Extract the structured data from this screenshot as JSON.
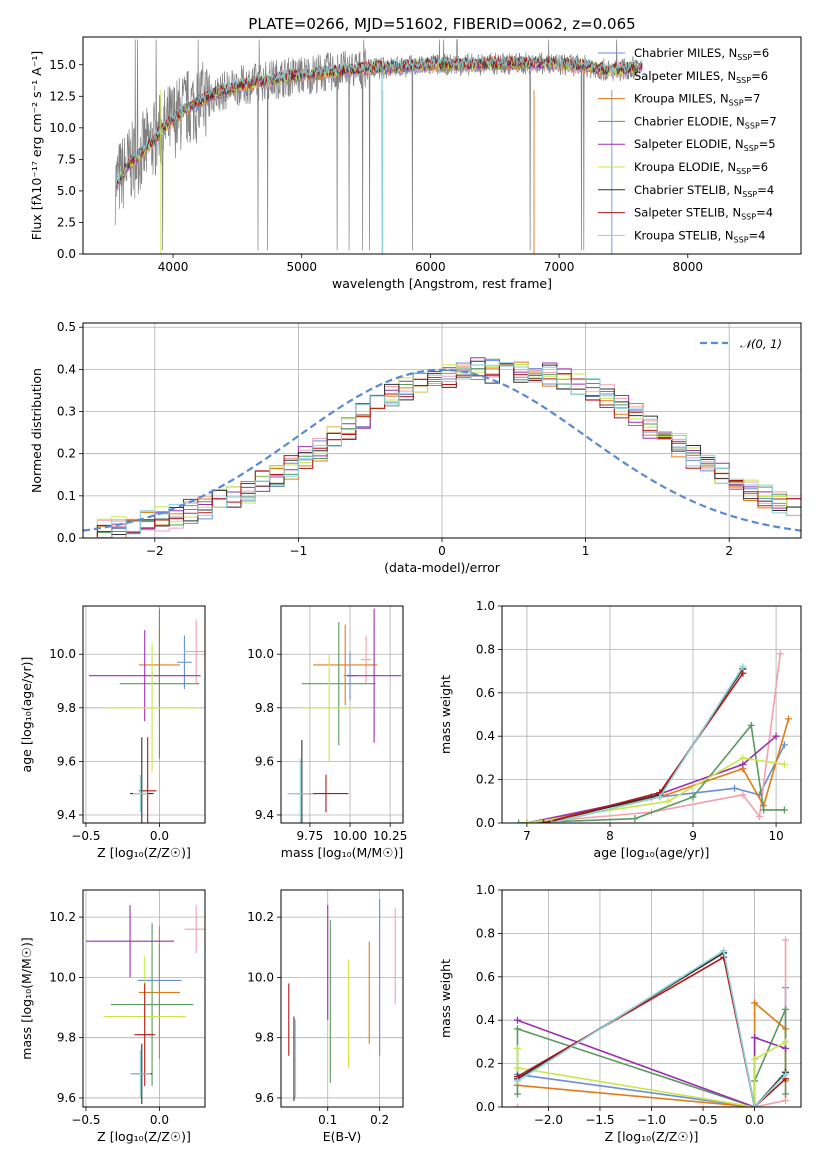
{
  "palette": [
    "#6a8fd6",
    "#f4a0b0",
    "#e07c18",
    "#5a9a60",
    "#9b30b0",
    "#c8e84a",
    "#303030",
    "#b01818",
    "#8cd0d8"
  ],
  "figure": {
    "title": "PLATE=0266, MJD=51602, FIBERID=0062, z=0.065"
  },
  "chart_data": [
    {
      "id": "spectrum",
      "type": "line",
      "title": "PLATE=0266, MJD=51602, FIBERID=0062, z=0.065",
      "xlabel": "wavelength [Angstrom, rest frame]",
      "ylabel": "Flux [fλ10⁻¹⁷ erg cm⁻² s⁻¹ A⁻¹]",
      "xlim": [
        3300,
        8880
      ],
      "ylim": [
        0,
        17.2
      ],
      "xticks": [
        "4000",
        "5000",
        "6000",
        "7000",
        "8000"
      ],
      "yticks": [
        "0.0",
        "2.5",
        "5.0",
        "7.5",
        "10.0",
        "12.5",
        "15.0"
      ],
      "grid": false,
      "legend_position": "right",
      "continuum": {
        "x": [
          3550,
          3650,
          3800,
          3950,
          4100,
          4300,
          4500,
          4800,
          5100,
          5400,
          5700,
          6000,
          6300,
          6600,
          6900,
          7200,
          7400,
          7600
        ],
        "y": [
          5.5,
          7.0,
          8.5,
          10.2,
          11.5,
          12.6,
          13.3,
          13.9,
          14.3,
          14.6,
          14.8,
          15.0,
          15.0,
          15.1,
          15.1,
          14.9,
          14.5,
          14.8
        ]
      },
      "series": [
        {
          "name": "Chabrier MILES, N_SSP=6"
        },
        {
          "name": "Salpeter MILES, N_SSP=6"
        },
        {
          "name": "Kroupa MILES, N_SSP=7"
        },
        {
          "name": "Chabrier ELODIE, N_SSP=7"
        },
        {
          "name": "Salpeter ELODIE, N_SSP=5"
        },
        {
          "name": "Kroupa ELODIE, N_SSP=6"
        },
        {
          "name": "Chabrier STELIB, N_SSP=4"
        },
        {
          "name": "Salpeter STELIB, N_SSP=4"
        },
        {
          "name": "Kroupa STELIB, N_SSP=4"
        }
      ],
      "legend_entries": [
        {
          "base": "Chabrier MILES, N",
          "sub": "SSP",
          "suffix": "=6"
        },
        {
          "base": "Salpeter MILES, N",
          "sub": "SSP",
          "suffix": "=6"
        },
        {
          "base": "Kroupa MILES, N",
          "sub": "SSP",
          "suffix": "=7"
        },
        {
          "base": "Chabrier ELODIE, N",
          "sub": "SSP",
          "suffix": "=7"
        },
        {
          "base": "Salpeter ELODIE, N",
          "sub": "SSP",
          "suffix": "=5"
        },
        {
          "base": "Kroupa ELODIE, N",
          "sub": "SSP",
          "suffix": "=6"
        },
        {
          "base": "Chabrier STELIB, N",
          "sub": "SSP",
          "suffix": "=4"
        },
        {
          "base": "Salpeter STELIB, N",
          "sub": "SSP",
          "suffix": "=4"
        },
        {
          "base": "Kroupa STELIB, N",
          "sub": "SSP",
          "suffix": "=4"
        }
      ]
    },
    {
      "id": "residuals",
      "type": "bar",
      "xlabel": "(data-model)/error",
      "ylabel": "Normed distribution",
      "xlim": [
        -2.5,
        2.5
      ],
      "ylim": [
        0,
        0.51
      ],
      "xticks": [
        "−2",
        "−1",
        "0",
        "1",
        "2"
      ],
      "yticks": [
        "0.0",
        "0.1",
        "0.2",
        "0.3",
        "0.4",
        "0.5"
      ],
      "grid": true,
      "bin_width": 0.1,
      "bin_start": -2.5,
      "curve_name": "𝒩(0, 1)",
      "legend_position": "top-right",
      "envelope": [
        0.02,
        0.022,
        0.027,
        0.032,
        0.038,
        0.045,
        0.052,
        0.062,
        0.072,
        0.085,
        0.098,
        0.112,
        0.13,
        0.148,
        0.168,
        0.19,
        0.212,
        0.235,
        0.262,
        0.29,
        0.312,
        0.335,
        0.355,
        0.37,
        0.378,
        0.387,
        0.394,
        0.398,
        0.397,
        0.394,
        0.398,
        0.394,
        0.387,
        0.378,
        0.37,
        0.355,
        0.335,
        0.312,
        0.29,
        0.262,
        0.242,
        0.218,
        0.19,
        0.168,
        0.148,
        0.13,
        0.112,
        0.098,
        0.085,
        0.072
      ]
    },
    {
      "id": "age-vs-z",
      "type": "scatter",
      "xlabel": "Z [log₁₀(Z/Z☉)]",
      "ylabel": "age  [log₁₀(age/yr)]",
      "xlim": [
        -0.52,
        0.31
      ],
      "ylim": [
        9.37,
        10.18
      ],
      "xticks": [
        "−0.5",
        "0.0"
      ],
      "yticks": [
        "9.4",
        "9.6",
        "9.8",
        "10.0"
      ],
      "grid": true,
      "points": [
        {
          "x": 0.17,
          "y": 9.97,
          "xerr": 0.05,
          "yerr": 0.1,
          "c": 0
        },
        {
          "x": 0.25,
          "y": 10.01,
          "xerr": 0.08,
          "yerr": 0.12,
          "c": 1
        },
        {
          "x": 0.0,
          "y": 9.96,
          "xerr": 0.14,
          "yerr": 0.14,
          "c": 2
        },
        {
          "x": 0.0,
          "y": 9.89,
          "xerr": 0.27,
          "yerr": 0.28,
          "c": 3
        },
        {
          "x": -0.1,
          "y": 9.92,
          "xerr": 0.38,
          "yerr": 0.17,
          "c": 4
        },
        {
          "x": -0.05,
          "y": 9.8,
          "xerr": 0.32,
          "yerr": 0.24,
          "c": 5
        },
        {
          "x": -0.12,
          "y": 9.48,
          "xerr": 0.08,
          "yerr": 0.21,
          "c": 6
        },
        {
          "x": -0.08,
          "y": 9.49,
          "xerr": 0.06,
          "yerr": 0.2,
          "c": 7
        },
        {
          "x": -0.13,
          "y": 9.48,
          "xerr": 0.05,
          "yerr": 0.07,
          "c": 8
        }
      ]
    },
    {
      "id": "age-vs-mass",
      "type": "scatter",
      "xlabel": "mass [log₁₀(M/M☉)]",
      "ylabel": "",
      "xlim": [
        9.57,
        10.33
      ],
      "ylim": [
        9.37,
        10.18
      ],
      "xticks": [
        "9.75",
        "10.00",
        "10.25"
      ],
      "yticks": [
        "9.4",
        "9.6",
        "9.8",
        "10.0"
      ],
      "grid": true,
      "points": [
        {
          "x": 10.0,
          "y": 9.92,
          "xerr": 0.04,
          "yerr": 0.09,
          "c": 0
        },
        {
          "x": 10.1,
          "y": 9.98,
          "xerr": 0.03,
          "yerr": 0.09,
          "c": 1
        },
        {
          "x": 9.97,
          "y": 9.96,
          "xerr": 0.2,
          "yerr": 0.15,
          "c": 2
        },
        {
          "x": 9.93,
          "y": 9.89,
          "xerr": 0.23,
          "yerr": 0.23,
          "c": 3
        },
        {
          "x": 10.15,
          "y": 9.92,
          "xerr": 0.17,
          "yerr": 0.25,
          "c": 4
        },
        {
          "x": 9.87,
          "y": 9.8,
          "xerr": 0.17,
          "yerr": 0.2,
          "c": 5
        },
        {
          "x": 9.7,
          "y": 9.48,
          "xerr": 0.08,
          "yerr": 0.2,
          "c": 6
        },
        {
          "x": 9.85,
          "y": 9.48,
          "xerr": 0.14,
          "yerr": 0.07,
          "c": 7
        },
        {
          "x": 9.69,
          "y": 9.48,
          "xerr": 0.08,
          "yerr": 0.13,
          "c": 8
        }
      ]
    },
    {
      "id": "weight-vs-age",
      "type": "line",
      "xlabel": "age  [log₁₀(age/yr)]",
      "ylabel": "mass weight",
      "xlim": [
        6.7,
        10.3
      ],
      "ylim": [
        0,
        1.0
      ],
      "xticks": [
        "7",
        "8",
        "9",
        "10"
      ],
      "yticks": [
        "0.0",
        "0.2",
        "0.4",
        "0.6",
        "0.8",
        "1.0"
      ],
      "grid": true,
      "series": [
        {
          "c": 0,
          "x": [
            7.0,
            8.6,
            9.5,
            9.8,
            10.1
          ],
          "y": [
            0.0,
            0.12,
            0.16,
            0.13,
            0.36
          ]
        },
        {
          "c": 1,
          "x": [
            7.0,
            8.5,
            9.6,
            9.8,
            10.05
          ],
          "y": [
            0.0,
            0.05,
            0.13,
            0.03,
            0.78
          ]
        },
        {
          "c": 2,
          "x": [
            7.0,
            8.6,
            9.6,
            9.85,
            10.15
          ],
          "y": [
            0.0,
            0.12,
            0.25,
            0.08,
            0.48
          ]
        },
        {
          "c": 3,
          "x": [
            6.9,
            8.3,
            9.0,
            9.7,
            9.85,
            10.1
          ],
          "y": [
            0.0,
            0.02,
            0.12,
            0.45,
            0.06,
            0.06
          ]
        },
        {
          "c": 4,
          "x": [
            7.0,
            8.5,
            9.6,
            10.0
          ],
          "y": [
            0.0,
            0.12,
            0.27,
            0.4
          ]
        },
        {
          "c": 5,
          "x": [
            7.0,
            8.7,
            9.6,
            10.1
          ],
          "y": [
            0.0,
            0.1,
            0.3,
            0.27
          ]
        },
        {
          "c": 6,
          "x": [
            7.2,
            8.6,
            9.6
          ],
          "y": [
            0.0,
            0.13,
            0.71
          ]
        },
        {
          "c": 7,
          "x": [
            7.2,
            8.6,
            9.6
          ],
          "y": [
            0.0,
            0.14,
            0.69
          ]
        },
        {
          "c": 8,
          "x": [
            7.3,
            8.6,
            9.6
          ],
          "y": [
            0.0,
            0.12,
            0.72
          ]
        }
      ]
    },
    {
      "id": "mass-vs-z",
      "type": "scatter",
      "xlabel": "Z [log₁₀(Z/Z☉)]",
      "ylabel": "mass [log₁₀(M/M☉)]",
      "xlim": [
        -0.52,
        0.31
      ],
      "ylim": [
        9.57,
        10.29
      ],
      "xticks": [
        "−0.5",
        "0.0"
      ],
      "yticks": [
        "9.6",
        "9.8",
        "10.0",
        "10.2"
      ],
      "grid": true,
      "points": [
        {
          "x": 0.0,
          "y": 9.99,
          "xerr": 0.15,
          "yerr": 0.12,
          "c": 0
        },
        {
          "x": 0.25,
          "y": 10.16,
          "xerr": 0.08,
          "yerr": 0.08,
          "c": 1
        },
        {
          "x": 0.0,
          "y": 9.95,
          "xerr": 0.14,
          "yerr": 0.22,
          "c": 2
        },
        {
          "x": -0.05,
          "y": 9.91,
          "xerr": 0.28,
          "yerr": 0.27,
          "c": 3
        },
        {
          "x": -0.2,
          "y": 10.12,
          "xerr": 0.3,
          "yerr": 0.12,
          "c": 4
        },
        {
          "x": -0.1,
          "y": 9.87,
          "xerr": 0.28,
          "yerr": 0.2,
          "c": 5
        },
        {
          "x": -0.12,
          "y": 9.68,
          "xerr": 0.07,
          "yerr": 0.1,
          "c": 6
        },
        {
          "x": -0.1,
          "y": 9.81,
          "xerr": 0.07,
          "yerr": 0.17,
          "c": 7
        },
        {
          "x": -0.13,
          "y": 9.68,
          "xerr": 0.07,
          "yerr": 0.08,
          "c": 8
        }
      ]
    },
    {
      "id": "mass-vs-ebv",
      "type": "scatter",
      "xlabel": "E(B-V)",
      "ylabel": "",
      "xlim": [
        0.01,
        0.245
      ],
      "ylim": [
        9.57,
        10.29
      ],
      "xticks": [
        "0.1",
        "0.2"
      ],
      "yticks": [
        "9.6",
        "9.8",
        "10.0",
        "10.2"
      ],
      "grid": true,
      "points": [
        {
          "x": 0.2,
          "y": 10.0,
          "xerr": 0.0,
          "yerr": 0.26,
          "c": 0
        },
        {
          "x": 0.23,
          "y": 10.07,
          "xerr": 0.0,
          "yerr": 0.16,
          "c": 1
        },
        {
          "x": 0.18,
          "y": 9.95,
          "xerr": 0.0,
          "yerr": 0.17,
          "c": 2
        },
        {
          "x": 0.105,
          "y": 9.92,
          "xerr": 0.0,
          "yerr": 0.27,
          "c": 3
        },
        {
          "x": 0.1,
          "y": 10.05,
          "xerr": 0.0,
          "yerr": 0.19,
          "c": 4
        },
        {
          "x": 0.14,
          "y": 9.88,
          "xerr": 0.0,
          "yerr": 0.18,
          "c": 5
        },
        {
          "x": 0.035,
          "y": 9.73,
          "xerr": 0.0,
          "yerr": 0.14,
          "c": 6
        },
        {
          "x": 0.025,
          "y": 9.86,
          "xerr": 0.0,
          "yerr": 0.12,
          "c": 7
        },
        {
          "x": 0.038,
          "y": 9.73,
          "xerr": 0.0,
          "yerr": 0.13,
          "c": 8
        }
      ]
    },
    {
      "id": "weight-vs-z",
      "type": "line",
      "xlabel": "Z [log₁₀(Z/Z☉)]",
      "ylabel": "mass weight",
      "xlim": [
        -2.45,
        0.45
      ],
      "ylim": [
        0,
        1.0
      ],
      "xticks": [
        "−2.0",
        "−1.5",
        "−1.0",
        "−0.5",
        "0.0"
      ],
      "yticks": [
        "0.0",
        "0.2",
        "0.4",
        "0.6",
        "0.8",
        "1.0"
      ],
      "grid": true,
      "series": [
        {
          "c": 0,
          "x": [
            -2.3,
            0.0,
            0.3,
            0.3
          ],
          "y": [
            0.15,
            0.0,
            0.16,
            0.55
          ]
        },
        {
          "c": 1,
          "x": [
            -2.3,
            0.0,
            0.3,
            0.3
          ],
          "y": [
            0.0,
            0.0,
            0.03,
            0.77
          ]
        },
        {
          "c": 2,
          "x": [
            -2.3,
            0.0,
            0.0,
            0.3,
            0.3
          ],
          "y": [
            0.1,
            0.0,
            0.48,
            0.36,
            0.12
          ]
        },
        {
          "c": 3,
          "x": [
            -2.3,
            -2.3,
            0.0,
            0.0,
            0.3,
            0.3
          ],
          "y": [
            0.06,
            0.36,
            0.0,
            0.12,
            0.45,
            0.06
          ]
        },
        {
          "c": 4,
          "x": [
            -2.3,
            0.0,
            0.0,
            0.3
          ],
          "y": [
            0.4,
            0.0,
            0.32,
            0.27
          ]
        },
        {
          "c": 5,
          "x": [
            -2.3,
            -2.3,
            0.0,
            0.0,
            0.3
          ],
          "y": [
            0.27,
            0.18,
            0.0,
            0.22,
            0.3
          ]
        },
        {
          "c": 6,
          "x": [
            -2.3,
            -0.3,
            0.0,
            0.3
          ],
          "y": [
            0.13,
            0.71,
            0.0,
            0.16
          ]
        },
        {
          "c": 7,
          "x": [
            -2.3,
            -0.3,
            0.0,
            0.3
          ],
          "y": [
            0.14,
            0.69,
            0.0,
            0.13
          ]
        },
        {
          "c": 8,
          "x": [
            -2.3,
            -0.3,
            0.0,
            0.3
          ],
          "y": [
            0.12,
            0.72,
            0.0,
            0.15
          ]
        }
      ]
    }
  ]
}
